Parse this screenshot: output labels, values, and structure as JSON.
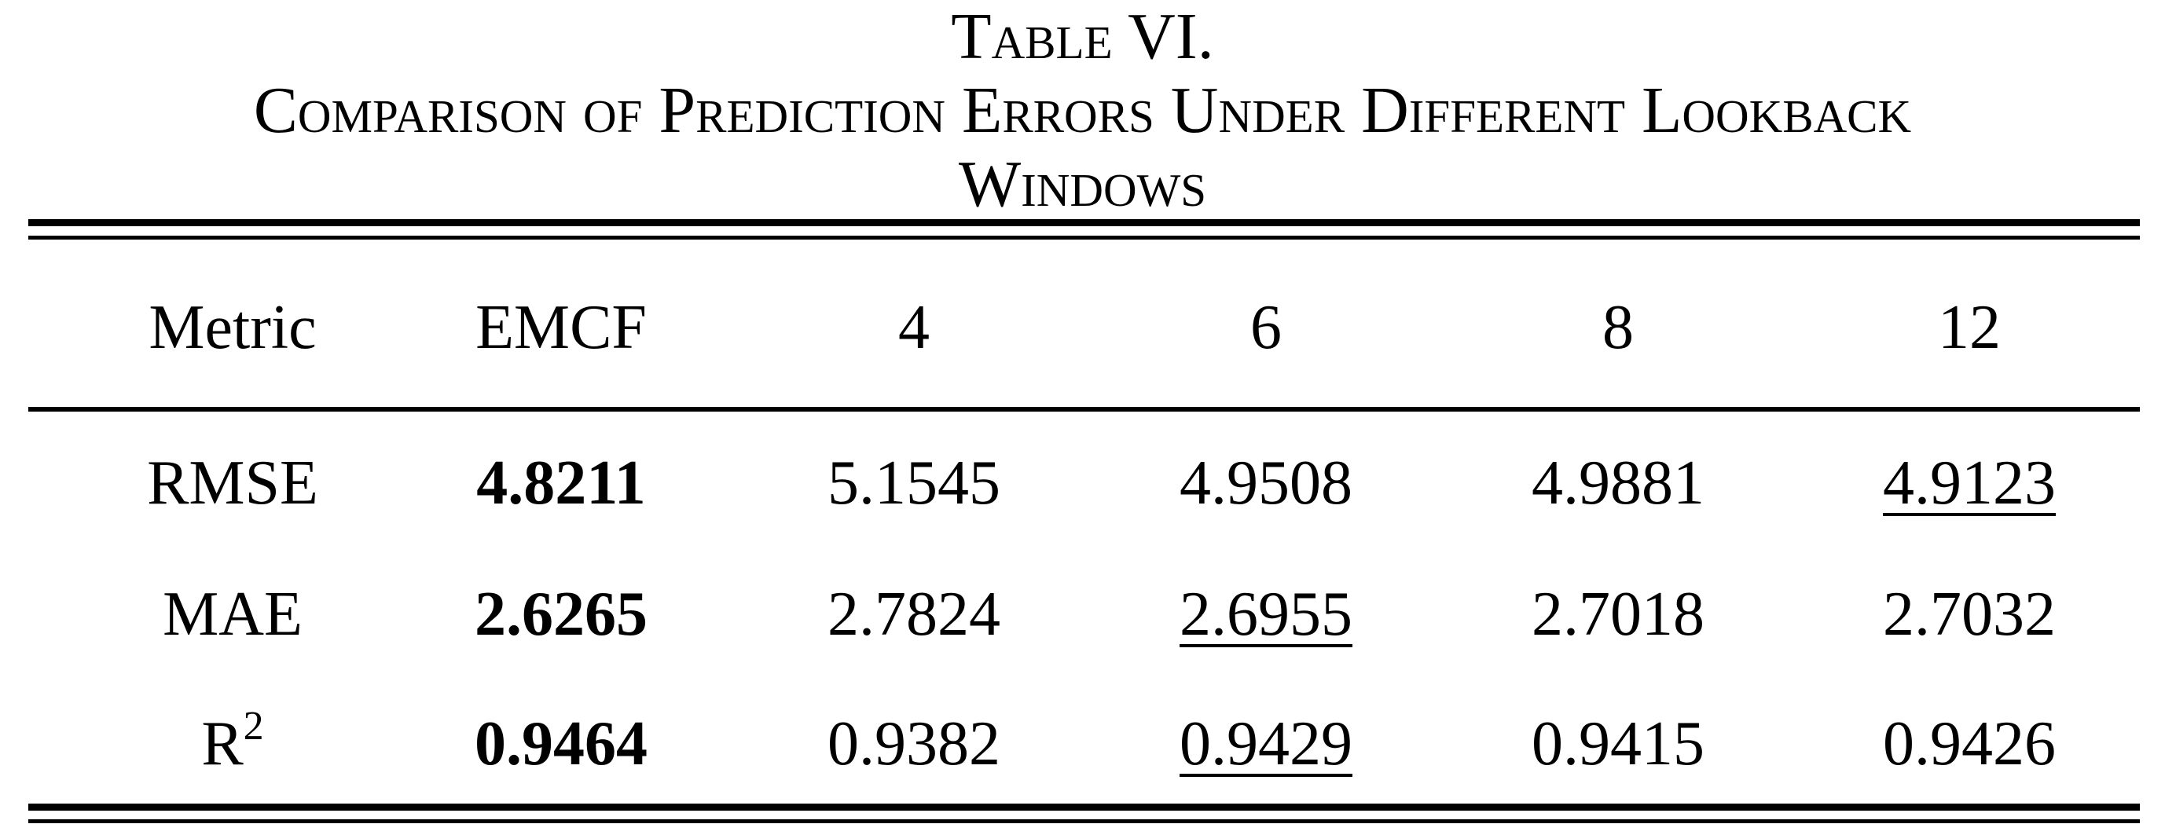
{
  "caption": {
    "label": "Table VI.",
    "title_line1": "Comparison of Prediction Errors Under Different Lookback",
    "title_line2": "Windows"
  },
  "table": {
    "columns": [
      "Metric",
      "EMCF",
      "4",
      "6",
      "8",
      "12"
    ],
    "rows": [
      {
        "metric": "RMSE",
        "metric_sup": "",
        "values": [
          "4.8211",
          "5.1545",
          "4.9508",
          "4.9881",
          "4.9123"
        ],
        "bold_index": 0,
        "underline_index": 4
      },
      {
        "metric": "MAE",
        "metric_sup": "",
        "values": [
          "2.6265",
          "2.7824",
          "2.6955",
          "2.7018",
          "2.7032"
        ],
        "bold_index": 0,
        "underline_index": 2
      },
      {
        "metric": "R",
        "metric_sup": "2",
        "values": [
          "0.9464",
          "0.9382",
          "0.9429",
          "0.9415",
          "0.9426"
        ],
        "bold_index": 0,
        "underline_index": 2
      }
    ]
  }
}
